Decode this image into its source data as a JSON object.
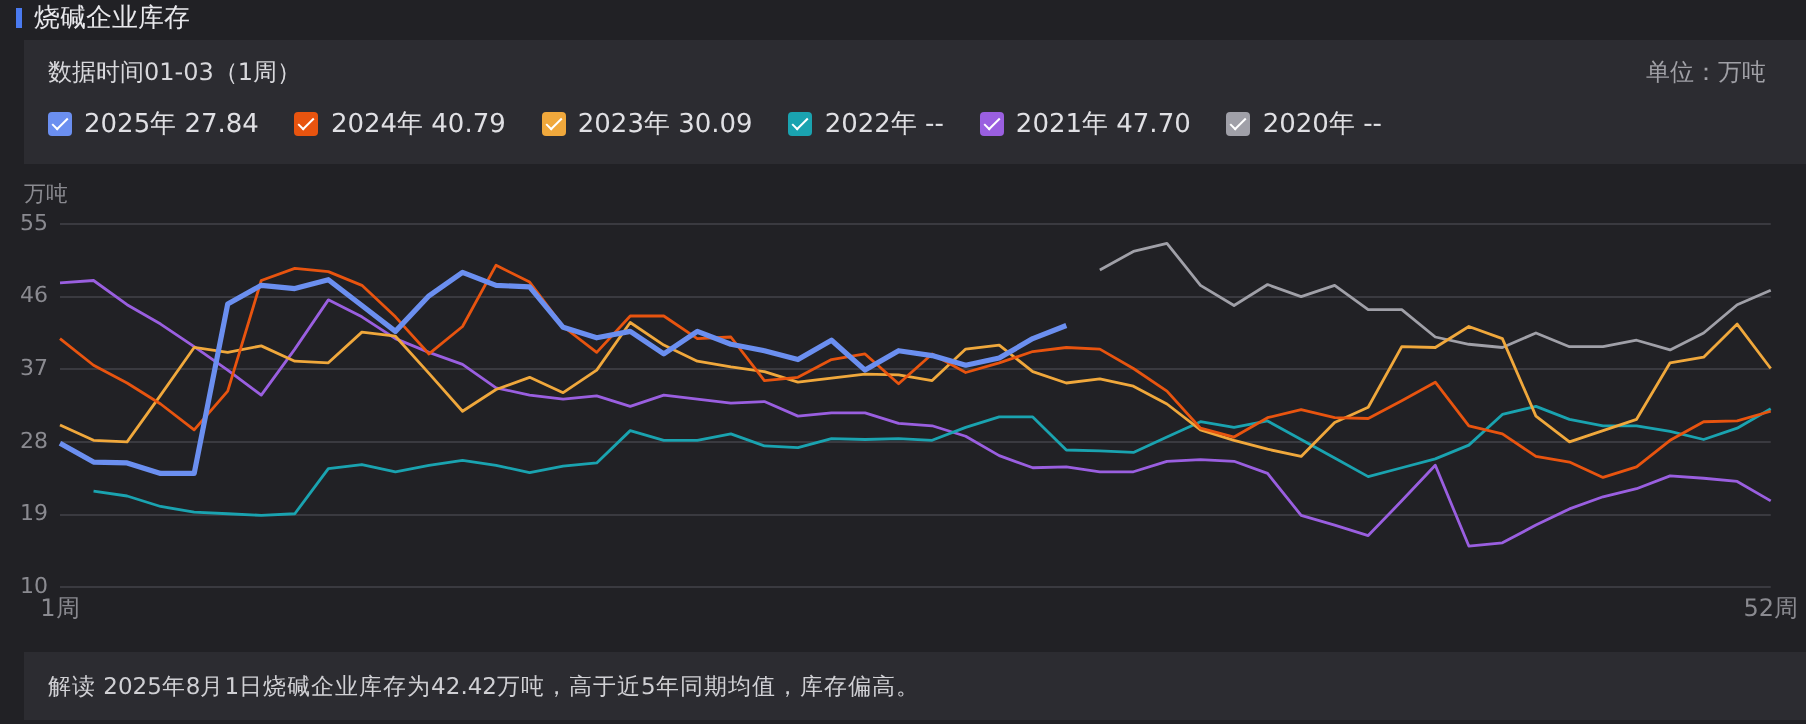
{
  "chart_data": {
    "type": "line",
    "title": "烧碱企业库存",
    "subtitle": "数据时间01-03（1周）",
    "ylabel": "万吨",
    "annotations": [
      "单位：万吨",
      "解读 2025年8月1日烧碱企业库存为42.42万吨，高于近5年同期均值，库存偏高。"
    ],
    "categories": [
      "1周",
      null,
      null,
      null,
      null,
      null,
      null,
      null,
      null,
      null,
      null,
      null,
      null,
      null,
      null,
      null,
      null,
      null,
      null,
      null,
      null,
      null,
      null,
      null,
      null,
      null,
      null,
      null,
      null,
      null,
      null,
      null,
      null,
      null,
      null,
      null,
      null,
      null,
      null,
      null,
      null,
      null,
      null,
      null,
      null,
      null,
      null,
      null,
      null,
      null,
      null,
      "52周"
    ],
    "ylim": [
      10,
      55
    ],
    "yticks": [
      10,
      19,
      28,
      37,
      46,
      55
    ],
    "grid": "y",
    "legend": "top left",
    "series": [
      {
        "name": "2025年 27.84",
        "color": "#6b8ff0",
        "values": [
          27.84,
          25.5,
          25.4,
          24.1,
          24.1,
          45.1,
          47.4,
          47.0,
          48.1,
          44.9,
          41.7,
          46.1,
          49.0,
          47.4,
          47.2,
          42.2,
          40.9,
          41.7,
          38.9,
          41.7,
          40.1,
          39.3,
          38.2,
          40.6,
          36.9,
          39.3,
          38.7,
          37.5,
          38.4,
          40.8,
          42.42,
          null,
          null,
          null,
          null,
          null,
          null,
          null,
          null,
          null,
          null,
          null,
          null,
          null,
          null,
          null,
          null,
          null,
          null,
          null,
          null,
          null
        ]
      },
      {
        "name": "2024年 40.79",
        "color": "#e8540f",
        "values": [
          40.79,
          37.5,
          35.3,
          32.7,
          29.5,
          34.3,
          48.0,
          49.5,
          49.1,
          47.4,
          43.5,
          38.9,
          42.3,
          49.9,
          47.8,
          42.3,
          39.1,
          43.6,
          43.6,
          40.8,
          41.0,
          35.6,
          36.0,
          38.2,
          38.9,
          35.2,
          38.9,
          36.6,
          37.8,
          39.2,
          39.7,
          39.5,
          37.1,
          34.3,
          29.7,
          28.6,
          31.0,
          32.0,
          31.0,
          30.9,
          33.1,
          35.4,
          30.0,
          29.0,
          26.2,
          25.5,
          23.6,
          24.9,
          28.2,
          30.5,
          30.6,
          31.8
        ]
      },
      {
        "name": "2023年 30.09",
        "color": "#f0a83c",
        "values": [
          30.09,
          28.2,
          28.0,
          33.8,
          39.7,
          39.1,
          39.9,
          38.0,
          37.8,
          41.6,
          41.1,
          36.5,
          31.8,
          34.5,
          36.0,
          34.1,
          36.9,
          42.8,
          40.0,
          38.0,
          37.3,
          36.7,
          35.4,
          35.9,
          36.4,
          36.3,
          35.6,
          39.5,
          40.0,
          36.7,
          35.3,
          35.8,
          34.9,
          32.7,
          29.5,
          28.2,
          27.1,
          26.2,
          30.4,
          32.3,
          39.8,
          39.7,
          42.3,
          40.8,
          31.2,
          28.0,
          29.4,
          30.8,
          37.8,
          38.5,
          42.6,
          37.1
        ]
      },
      {
        "name": "2022年 --",
        "color": "#1aa3b0",
        "values": [
          null,
          21.9,
          21.3,
          20.0,
          19.3,
          19.1,
          18.9,
          19.1,
          24.7,
          25.2,
          24.3,
          25.1,
          25.7,
          25.1,
          24.2,
          25.0,
          25.4,
          29.4,
          28.2,
          28.2,
          29.0,
          27.5,
          27.3,
          28.4,
          28.3,
          28.4,
          28.2,
          29.8,
          31.1,
          31.1,
          27.0,
          26.9,
          26.7,
          28.6,
          30.5,
          29.8,
          30.6,
          28.3,
          26.0,
          23.7,
          24.8,
          25.9,
          27.6,
          31.4,
          32.4,
          30.8,
          30.0,
          30.0,
          29.3,
          28.3,
          29.7,
          32.1
        ]
      },
      {
        "name": "2021年 47.70",
        "color": "#9a5fe0",
        "values": [
          47.7,
          48.0,
          45.0,
          42.6,
          39.8,
          36.9,
          33.8,
          39.5,
          45.6,
          43.5,
          40.8,
          39.1,
          37.6,
          34.7,
          33.8,
          33.3,
          33.7,
          32.4,
          33.8,
          33.3,
          32.8,
          33.0,
          31.2,
          31.6,
          31.6,
          30.3,
          30.0,
          28.7,
          26.3,
          24.8,
          24.9,
          24.3,
          24.3,
          25.6,
          25.8,
          25.6,
          24.1,
          18.9,
          17.7,
          16.4,
          20.7,
          25.1,
          15.1,
          15.5,
          17.7,
          19.7,
          21.2,
          22.2,
          23.8,
          23.5,
          23.1,
          20.7
        ]
      },
      {
        "name": "2020年 --",
        "color": "#a0a0a8",
        "values": [
          null,
          null,
          null,
          null,
          null,
          null,
          null,
          null,
          null,
          null,
          null,
          null,
          null,
          null,
          null,
          null,
          null,
          null,
          null,
          null,
          null,
          null,
          null,
          null,
          null,
          null,
          null,
          null,
          null,
          null,
          null,
          49.3,
          51.6,
          52.6,
          47.4,
          44.9,
          47.5,
          46.0,
          47.4,
          44.4,
          44.4,
          41.0,
          40.1,
          39.7,
          41.5,
          39.8,
          39.8,
          40.6,
          39.4,
          41.5,
          45.0,
          46.8
        ]
      }
    ]
  }
}
